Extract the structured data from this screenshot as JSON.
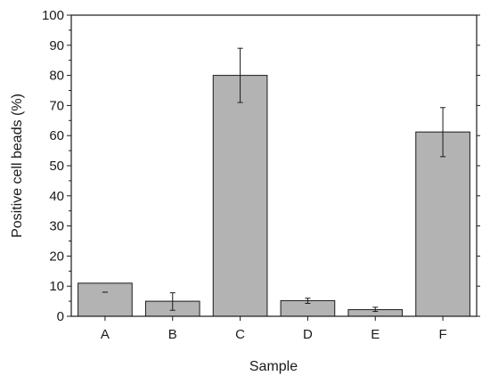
{
  "chart_data": {
    "type": "bar",
    "title": "",
    "xlabel": "Sample",
    "ylabel": "Positive cell beads (%)",
    "categories": [
      "A",
      "B",
      "C",
      "D",
      "E",
      "F"
    ],
    "values": [
      11,
      5,
      80,
      5.2,
      2.2,
      61.2
    ],
    "error_low": [
      8,
      2,
      71,
      4.3,
      1.6,
      53
    ],
    "error_high": [
      8,
      7.8,
      89,
      6,
      3,
      69.3
    ],
    "ylim": [
      0,
      100
    ],
    "yticks": [
      0,
      10,
      20,
      30,
      40,
      50,
      60,
      70,
      80,
      90,
      100
    ],
    "grid": false,
    "bar_color": "#b3b3b3",
    "edge_color": "#1a1a1a"
  }
}
